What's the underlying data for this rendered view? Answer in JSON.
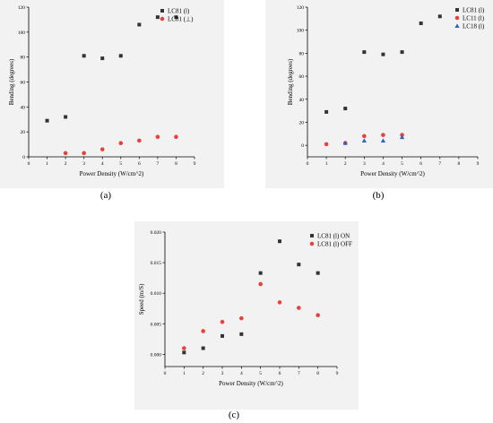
{
  "panels": [
    {
      "id": "a",
      "label": "(a)",
      "chart_data": {
        "type": "scatter",
        "xlabel": "Power Density (W/cm^2)",
        "ylabel": "Bending (degrees)",
        "xlim": [
          0,
          9
        ],
        "ylim": [
          0,
          120
        ],
        "xticks": [
          0,
          1,
          2,
          3,
          4,
          5,
          6,
          7,
          8,
          9
        ],
        "yticks": [
          0,
          20,
          40,
          60,
          80,
          100,
          120
        ],
        "tick_format": "int",
        "legend_position": "top-right",
        "series": [
          {
            "name": "LC81 (l)",
            "marker": "square",
            "color": "#333333",
            "x": [
              1,
              2,
              3,
              4,
              5,
              6,
              7,
              8
            ],
            "y": [
              29,
              32,
              81,
              79,
              81,
              106,
              112,
              112
            ]
          },
          {
            "name": "LC81 (⊥)",
            "marker": "circle",
            "color": "#e8413b",
            "x": [
              2,
              3,
              4,
              5,
              6,
              7,
              8
            ],
            "y": [
              3,
              3,
              6,
              11,
              13,
              16,
              16
            ]
          }
        ]
      }
    },
    {
      "id": "b",
      "label": "(b)",
      "chart_data": {
        "type": "scatter",
        "xlabel": "Power Density (W/cm^2)",
        "ylabel": "Bending (degrees)",
        "xlim": [
          0,
          9
        ],
        "ylim": [
          -10,
          120
        ],
        "xticks": [
          0,
          1,
          2,
          3,
          4,
          5,
          6,
          7,
          8,
          9
        ],
        "yticks": [
          0,
          20,
          40,
          60,
          80,
          100,
          120
        ],
        "tick_format": "int",
        "legend_position": "top-right",
        "series": [
          {
            "name": "LC81 (l)",
            "marker": "square",
            "color": "#333333",
            "x": [
              1,
              2,
              3,
              4,
              5,
              6,
              7
            ],
            "y": [
              29,
              32,
              81,
              79,
              81,
              106,
              112
            ]
          },
          {
            "name": "LC11 (l)",
            "marker": "circle",
            "color": "#e8413b",
            "x": [
              1,
              2,
              3,
              4,
              5
            ],
            "y": [
              1,
              2,
              8,
              9,
              9
            ]
          },
          {
            "name": "LC18 (l)",
            "marker": "triangle",
            "color": "#2f62c9",
            "x": [
              2,
              3,
              4,
              5
            ],
            "y": [
              2,
              4,
              4,
              7
            ]
          }
        ]
      }
    },
    {
      "id": "c",
      "label": "(c)",
      "chart_data": {
        "type": "scatter",
        "xlabel": "Power Density (W/cm^2)",
        "ylabel": "Speed (m/S)",
        "xlim": [
          0,
          9
        ],
        "ylim": [
          -0.002,
          0.02
        ],
        "xticks": [
          0,
          1,
          2,
          3,
          4,
          5,
          6,
          7,
          8,
          9
        ],
        "yticks": [
          0,
          0.005,
          0.01,
          0.015,
          0.02
        ],
        "tick_format": "fixed3",
        "legend_position": "top-right",
        "series": [
          {
            "name": "LC81 (l) ON",
            "marker": "square",
            "color": "#333333",
            "x": [
              1,
              2,
              3,
              4,
              5,
              6,
              7,
              8
            ],
            "y": [
              0.0003,
              0.001,
              0.003,
              0.0033,
              0.0133,
              0.0185,
              0.0147,
              0.0133
            ]
          },
          {
            "name": "LC81 (l) OFF",
            "marker": "circle",
            "color": "#e8413b",
            "x": [
              1,
              2,
              3,
              4,
              5,
              6,
              7,
              8
            ],
            "y": [
              0.001,
              0.0038,
              0.0053,
              0.0059,
              0.0115,
              0.0085,
              0.0076,
              0.0064
            ]
          }
        ]
      }
    }
  ]
}
